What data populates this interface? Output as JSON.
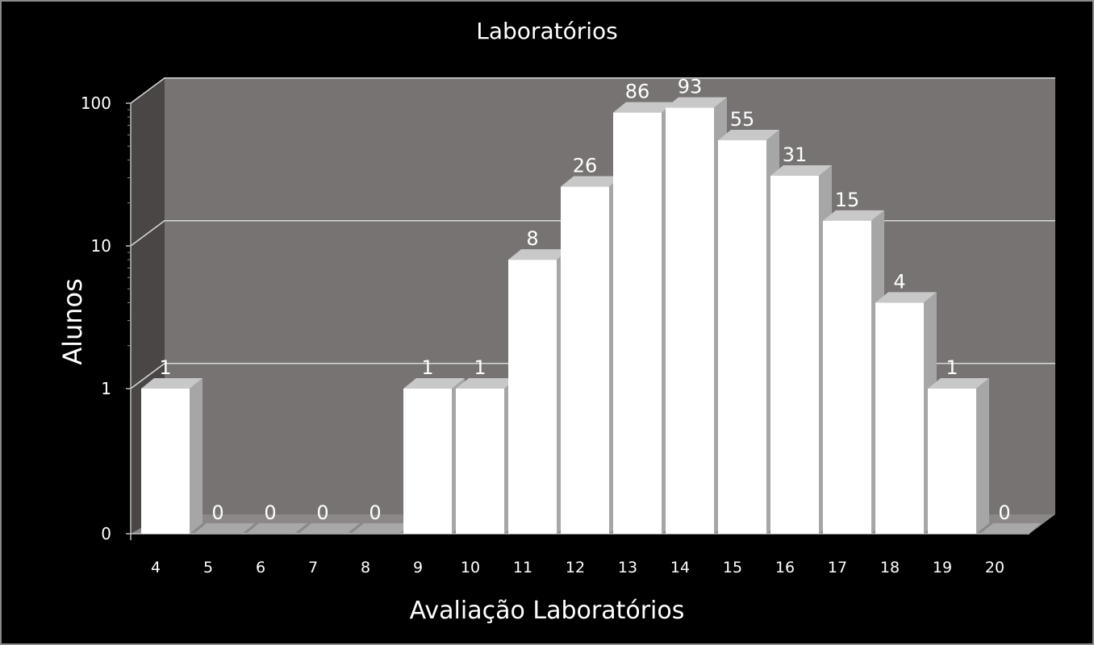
{
  "chart_data": {
    "type": "bar",
    "title": "Laboratórios",
    "xlabel": "Avaliação Laboratórios",
    "ylabel": "Alunos",
    "y_scale": "log",
    "y_ticks": [
      "0",
      "1",
      "10",
      "100"
    ],
    "grid": true,
    "legend": "none",
    "categories": [
      "4",
      "5",
      "6",
      "7",
      "8",
      "9",
      "10",
      "11",
      "12",
      "13",
      "14",
      "15",
      "16",
      "17",
      "18",
      "19",
      "20"
    ],
    "values": [
      1,
      0,
      0,
      0,
      0,
      1,
      1,
      8,
      26,
      86,
      93,
      55,
      31,
      15,
      4,
      1,
      0
    ],
    "data_labels": [
      "1",
      "0",
      "0",
      "0",
      "0",
      "1",
      "1",
      "8",
      "26",
      "86",
      "93",
      "55",
      "31",
      "15",
      "4",
      "1",
      "0"
    ]
  },
  "colors": {
    "background": "#000000",
    "plot_back_wall": "#777373",
    "plot_side_wall": "#4a4646",
    "gridline": "#d9d9d9",
    "bar_front": "#ffffff",
    "bar_top": "#c8c8c8",
    "bar_side": "#a6a6a6",
    "text": "#ffffff"
  }
}
